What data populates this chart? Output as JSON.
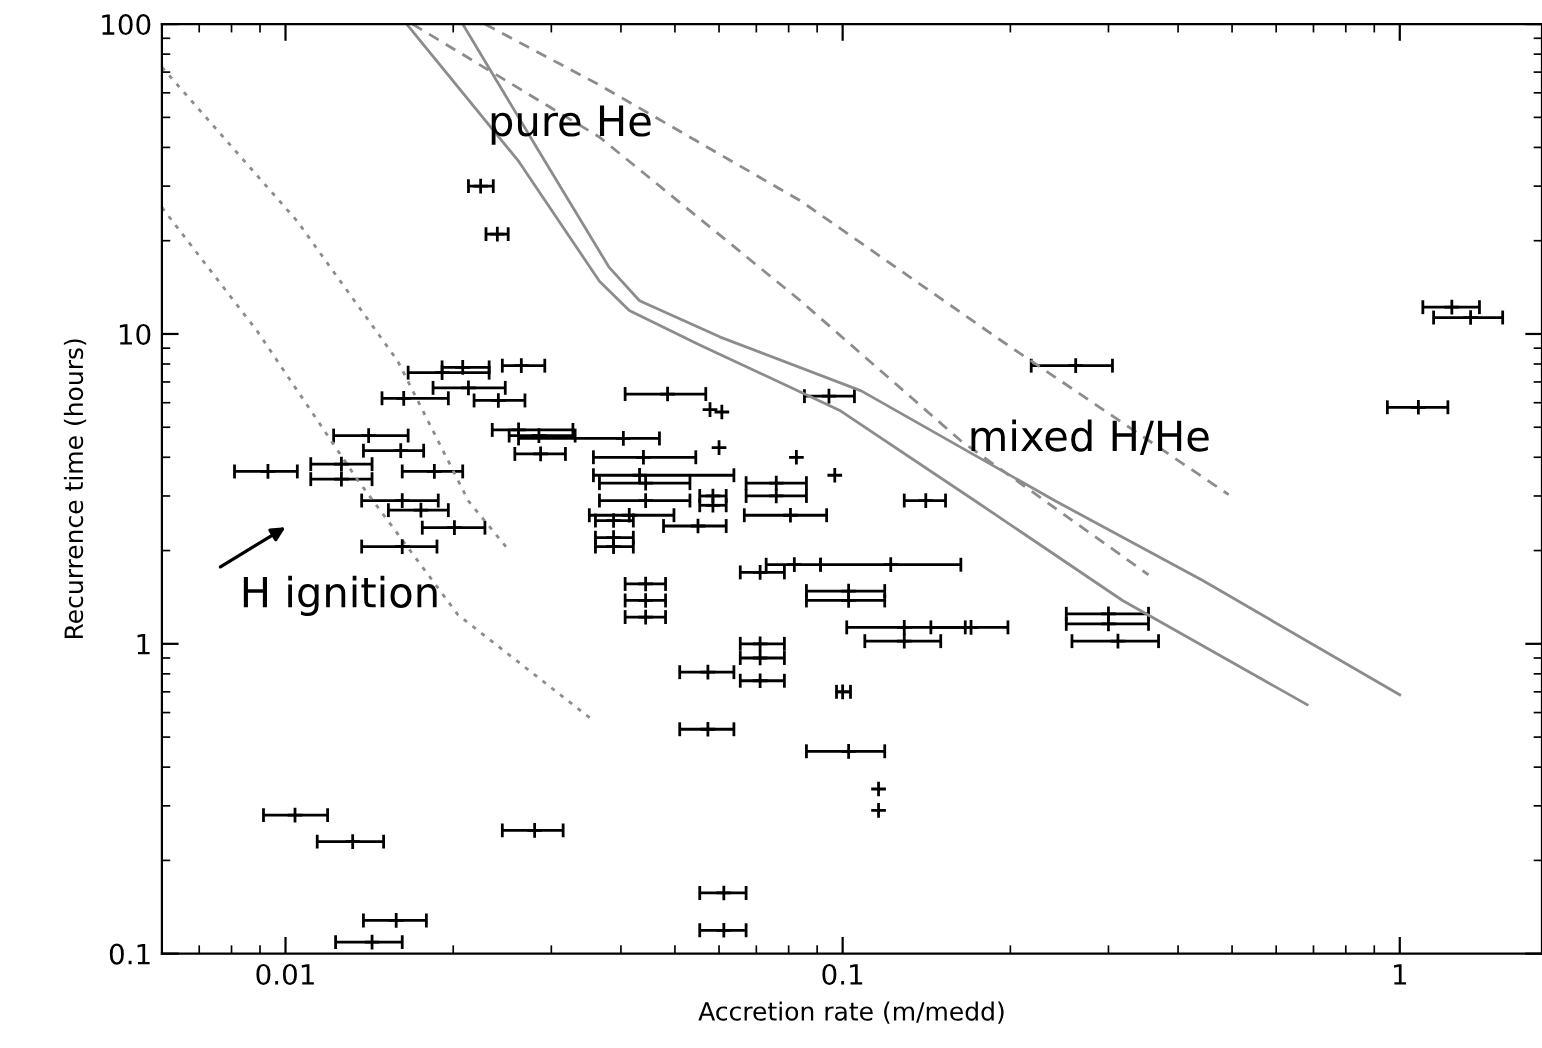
{
  "chart_data": {
    "type": "scatter",
    "xlabel": "Accretion rate (m/medd)",
    "ylabel": "Recurrence time (hours)",
    "log": "xy",
    "xlim": [
      0.006,
      1.8
    ],
    "ylim": [
      0.1,
      100
    ],
    "xticks": [
      {
        "value": 0.01,
        "label": "0.01"
      },
      {
        "value": 0.1,
        "label": "0.1"
      },
      1
    ],
    "yticks": [
      {
        "value": 0.1,
        "label": "0.1"
      },
      1,
      10,
      100
    ],
    "grid": false,
    "legend": false,
    "annotations": [
      "pure He",
      "mixed H/He",
      "H ignition"
    ],
    "series": [
      {
        "color": "#000000",
        "marker": "cross",
        "x": [
          0.0224,
          0.024,
          1.24,
          1.34,
          1.08,
          0.262,
          0.0945,
          0.0485,
          0.141,
          0.0578,
          0.0607,
          0.06,
          0.0826,
          0.0968,
          0.0819,
          0.122,
          0.0711,
          0.0443,
          0.0443,
          0.0443,
          0.1025,
          0.1025,
          0.129,
          0.17,
          0.129,
          0.3,
          0.3,
          0.312,
          0.0711,
          0.0711,
          0.0711,
          0.0573,
          0.1,
          0.0573,
          0.1025,
          0.116,
          0.116,
          0.0612,
          0.0612,
          0.0104,
          0.0132,
          0.028,
          0.0158,
          0.0143,
          0.0162,
          0.0201,
          0.0191,
          0.0208,
          0.0265,
          0.0163,
          0.0213,
          0.0241,
          0.0262,
          0.0285,
          0.0404,
          0.0287,
          0.0141,
          0.0161,
          0.0126,
          0.0126,
          0.0185,
          0.0162,
          0.0175,
          0.0093,
          0.0439,
          0.0432,
          0.0443,
          0.0443,
          0.0414,
          0.055,
          0.0388,
          0.0388,
          0.0388,
          0.0585,
          0.0585,
          0.0806,
          0.076,
          0.076
        ],
        "values": [
          30,
          21,
          12.2,
          11.3,
          5.8,
          7.9,
          6.3,
          6.4,
          2.9,
          5.7,
          5.6,
          4.3,
          4.0,
          3.5,
          1.8,
          1.8,
          1.7,
          1.56,
          1.38,
          1.22,
          1.48,
          1.38,
          1.13,
          1.13,
          1.02,
          1.25,
          1.16,
          1.02,
          1.0,
          0.9,
          0.76,
          0.81,
          0.7,
          0.53,
          0.45,
          0.34,
          0.29,
          0.157,
          0.119,
          0.28,
          0.23,
          0.25,
          0.128,
          0.109,
          2.06,
          2.37,
          7.5,
          7.8,
          7.9,
          6.2,
          6.7,
          6.1,
          4.9,
          4.7,
          4.6,
          4.1,
          4.7,
          4.2,
          3.8,
          3.4,
          3.6,
          2.9,
          2.7,
          3.6,
          4.0,
          3.5,
          3.3,
          2.9,
          2.6,
          2.4,
          2.5,
          2.2,
          2.06,
          3.0,
          2.8,
          2.6,
          3.3,
          3.0
        ],
        "xerrors": [
          [
            0.0213,
            0.0236
          ],
          [
            0.0229,
            0.0251
          ],
          [
            1.1,
            1.39
          ],
          [
            1.15,
            1.53
          ],
          [
            0.95,
            1.22
          ],
          [
            0.218,
            0.305
          ],
          [
            0.0854,
            0.105
          ],
          [
            0.0407,
            0.0568
          ],
          [
            0.129,
            0.153
          ],
          null,
          null,
          null,
          null,
          null,
          [
            0.0729,
            0.0913
          ],
          [
            0.0913,
            0.163
          ],
          [
            0.0655,
            0.0786
          ],
          [
            0.0407,
            0.0481
          ],
          [
            0.0407,
            0.0481
          ],
          [
            0.0407,
            0.0481
          ],
          [
            0.0861,
            0.119
          ],
          [
            0.0861,
            0.119
          ],
          [
            0.1017,
            0.166
          ],
          [
            0.144,
            0.198
          ],
          [
            0.1096,
            0.15
          ],
          [
            0.252,
            0.354
          ],
          [
            0.252,
            0.354
          ],
          [
            0.258,
            0.369
          ],
          [
            0.0655,
            0.0786
          ],
          [
            0.0655,
            0.0786
          ],
          [
            0.0655,
            0.0786
          ],
          [
            0.051,
            0.0638
          ],
          [
            0.0975,
            0.1033
          ],
          [
            0.051,
            0.0638
          ],
          [
            0.0861,
            0.119
          ],
          null,
          null,
          [
            0.0554,
            0.0671
          ],
          [
            0.0554,
            0.0671
          ],
          [
            0.00913,
            0.0119
          ],
          [
            0.0114,
            0.015
          ],
          [
            0.0245,
            0.0315
          ],
          [
            0.0138,
            0.0179
          ],
          [
            0.0123,
            0.0162
          ],
          [
            0.0137,
            0.0187
          ],
          [
            0.0176,
            0.0228
          ],
          [
            0.0166,
            0.0232
          ],
          [
            0.0191,
            0.0232
          ],
          [
            0.0245,
            0.0292
          ],
          [
            0.0149,
            0.0196
          ],
          [
            0.0184,
            0.0248
          ],
          [
            0.0218,
            0.0269
          ],
          [
            0.0235,
            0.0328
          ],
          [
            0.0252,
            0.0331
          ],
          [
            0.0262,
            0.0469
          ],
          [
            0.0258,
            0.0318
          ],
          [
            0.0122,
            0.0166
          ],
          [
            0.0138,
            0.0177
          ],
          [
            0.0111,
            0.0143
          ],
          [
            0.0111,
            0.0143
          ],
          [
            0.0162,
            0.0208
          ],
          [
            0.0137,
            0.0188
          ],
          [
            0.0153,
            0.0196
          ],
          [
            0.0081,
            0.0105
          ],
          [
            0.0357,
            0.0545
          ],
          [
            0.0357,
            0.0638
          ],
          [
            0.0366,
            0.0532
          ],
          [
            0.0366,
            0.0532
          ],
          [
            0.0351,
            0.0498
          ],
          [
            0.0477,
            0.0618
          ],
          [
            0.036,
            0.0421
          ],
          [
            0.036,
            0.0421
          ],
          [
            0.036,
            0.0421
          ],
          [
            0.0554,
            0.0618
          ],
          [
            0.0554,
            0.0618
          ],
          [
            0.0666,
            0.0936
          ],
          [
            0.0671,
            0.0861
          ],
          [
            0.0671,
            0.0861
          ]
        ]
      },
      {
        "type": "line",
        "color": "#8c8c8c",
        "line_style": "solid",
        "x": [
          0.0165,
          0.0262,
          0.0366,
          0.0414,
          0.0554,
          0.0991,
          0.173,
          0.318,
          0.682
        ],
        "values": [
          100,
          36.1,
          14.8,
          11.9,
          9.22,
          5.65,
          2.89,
          1.38,
          0.636
        ]
      },
      {
        "type": "line",
        "color": "#8c8c8c",
        "line_style": "solid",
        "x": [
          0.0208,
          0.0285,
          0.0381,
          0.0432,
          0.0603,
          0.108,
          0.241,
          0.443,
          1.0
        ],
        "values": [
          100,
          38.9,
          16.4,
          12.8,
          9.77,
          6.55,
          2.89,
          1.6,
          0.685
        ]
      },
      {
        "type": "line",
        "color": "#8c8c8c",
        "line_style": "dashed",
        "x": [
          0.0169,
          0.0366,
          0.084,
          0.163,
          0.354
        ],
        "values": [
          100,
          43.2,
          12.8,
          4.52,
          1.67
        ]
      },
      {
        "type": "line",
        "color": "#8c8c8c",
        "line_style": "dashed",
        "x": [
          0.0228,
          0.0366,
          0.084,
          0.193,
          0.493
        ],
        "values": [
          100,
          63.6,
          26.9,
          9.49,
          3.03
        ]
      },
      {
        "type": "line",
        "color": "#8c8c8c",
        "line_style": "dotted",
        "x": [
          0.006,
          0.0105,
          0.0159,
          0.0213,
          0.0252
        ],
        "values": [
          72.6,
          23.1,
          8.18,
          2.89,
          2.0
        ]
      },
      {
        "type": "line",
        "color": "#8c8c8c",
        "line_style": "dotted",
        "x": [
          0.006,
          0.0089,
          0.0135,
          0.0204,
          0.0357
        ],
        "values": [
          25.6,
          10.2,
          3.36,
          1.24,
          0.565
        ]
      }
    ]
  }
}
